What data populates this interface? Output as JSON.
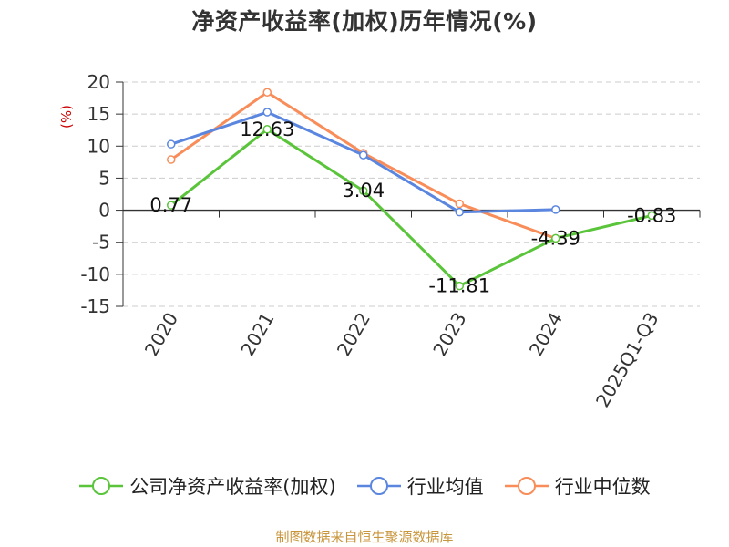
{
  "chart_data": {
    "type": "line",
    "title": "净资产收益率(加权)历年情况(%)",
    "ylabel": "(%)",
    "xlabel": "",
    "categories": [
      "2020",
      "2021",
      "2022",
      "2023",
      "2024",
      "2025Q1-Q3"
    ],
    "ylim": [
      -15,
      20
    ],
    "yticks": [
      20,
      15,
      10,
      5,
      0,
      -5,
      -10,
      -15
    ],
    "grid": true,
    "legend_position": "bottom",
    "series": [
      {
        "name": "公司净资产收益率(加权)",
        "color": "#5ac43a",
        "values": [
          0.77,
          12.63,
          3.04,
          -11.81,
          -4.39,
          -0.83
        ],
        "labels": [
          "0.77",
          "12.63",
          "3.04",
          "-11.81",
          "-4.39",
          "-0.83"
        ]
      },
      {
        "name": "行业均值",
        "color": "#5b86e0",
        "values": [
          10.3,
          15.3,
          8.6,
          -0.3,
          0.1,
          null
        ]
      },
      {
        "name": "行业中位数",
        "color": "#f88d5a",
        "values": [
          7.9,
          18.4,
          8.9,
          1.0,
          -4.4,
          null
        ]
      }
    ]
  },
  "source": "制图数据来自恒生聚源数据库"
}
